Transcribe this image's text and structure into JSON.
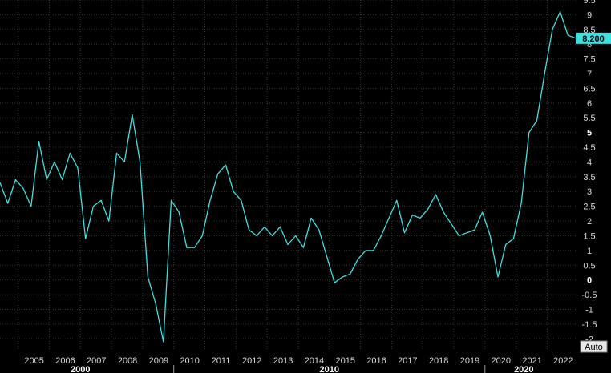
{
  "chart_data": {
    "type": "line",
    "title": "",
    "xlabel": "",
    "ylabel": "",
    "ylim": [
      -2.4,
      9.5
    ],
    "xlim": [
      "2004-06",
      "2022-12"
    ],
    "y_ticks": [
      -2,
      -1.5,
      -1,
      -0.5,
      0,
      0.5,
      1,
      1.5,
      2,
      2.5,
      3,
      3.5,
      4,
      4.5,
      5,
      5.5,
      6,
      6.5,
      7,
      7.5,
      8,
      8.5,
      9,
      9.5
    ],
    "y_tick_labels": [
      "-2",
      "-1.5",
      "-1",
      "-0.5",
      "0",
      "0.5",
      "1",
      "1.5",
      "2",
      "2.5",
      "3",
      "3.5",
      "4",
      "4.5",
      "5",
      "5.5",
      "6",
      "6.5",
      "7",
      "7.5",
      "8",
      "8.5",
      "9",
      "9.5"
    ],
    "bold_y_ticks": [
      "0",
      "5"
    ],
    "x_tick_labels": [
      "2005",
      "2006",
      "2007",
      "2008",
      "2009",
      "2010",
      "2011",
      "2012",
      "2013",
      "2014",
      "2015",
      "2016",
      "2017",
      "2018",
      "2019",
      "2020",
      "2021",
      "2022"
    ],
    "decade_labels": [
      "2000",
      "2010",
      "2020"
    ],
    "last_value_label": "8.200",
    "scale_mode_label": "Auto",
    "grid": true,
    "line_color": "#3fe0e0",
    "grid_color": "#2c3a34",
    "background_color": "#000000",
    "series": [
      {
        "x": [
          "2004-06",
          "2004-09",
          "2004-12",
          "2005-03",
          "2005-06",
          "2005-09",
          "2005-12",
          "2006-03",
          "2006-06",
          "2006-09",
          "2006-12",
          "2007-03",
          "2007-06",
          "2007-09",
          "2007-12",
          "2008-03",
          "2008-06",
          "2008-09",
          "2008-12",
          "2009-03",
          "2009-06",
          "2009-09",
          "2009-12",
          "2010-03",
          "2010-06",
          "2010-09",
          "2010-12",
          "2011-03",
          "2011-06",
          "2011-09",
          "2011-12",
          "2012-03",
          "2012-06",
          "2012-09",
          "2012-12",
          "2013-03",
          "2013-06",
          "2013-09",
          "2013-12",
          "2014-03",
          "2014-06",
          "2014-09",
          "2014-12",
          "2015-03",
          "2015-06",
          "2015-09",
          "2015-12",
          "2016-03",
          "2016-06",
          "2016-09",
          "2016-12",
          "2017-03",
          "2017-06",
          "2017-09",
          "2017-12",
          "2018-03",
          "2018-06",
          "2018-09",
          "2018-12",
          "2019-03",
          "2019-06",
          "2019-09",
          "2019-12",
          "2020-03",
          "2020-06",
          "2020-09",
          "2020-12",
          "2021-03",
          "2021-06",
          "2021-09",
          "2021-12",
          "2022-03",
          "2022-06",
          "2022-09",
          "2022-12"
        ],
        "values": [
          3.3,
          2.6,
          3.4,
          3.1,
          2.5,
          4.7,
          3.4,
          4.0,
          3.4,
          4.3,
          3.8,
          1.4,
          2.5,
          2.7,
          2.0,
          4.3,
          4.0,
          5.6,
          4.0,
          0.1,
          -0.8,
          -2.1,
          2.7,
          2.3,
          1.1,
          1.1,
          1.5,
          2.7,
          3.6,
          3.9,
          3.0,
          2.7,
          1.7,
          1.5,
          1.8,
          1.5,
          1.8,
          1.2,
          1.5,
          1.1,
          2.1,
          1.7,
          0.8,
          -0.1,
          0.1,
          0.2,
          0.7,
          1.0,
          1.0,
          1.5,
          2.1,
          2.7,
          1.6,
          2.2,
          2.1,
          2.4,
          2.9,
          2.3,
          1.9,
          1.5,
          1.6,
          1.7,
          2.3,
          1.5,
          0.1,
          1.2,
          1.4,
          2.6,
          5.0,
          5.4,
          7.0,
          8.5,
          9.1,
          8.3,
          8.2
        ]
      }
    ]
  }
}
